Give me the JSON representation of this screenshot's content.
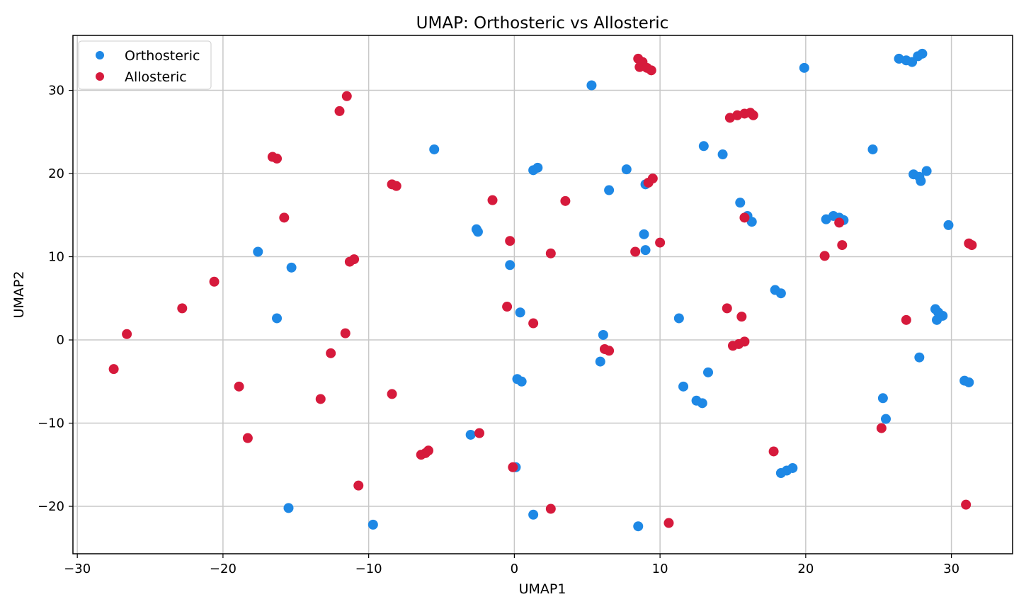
{
  "chart_data": {
    "type": "scatter",
    "title": "UMAP: Orthosteric vs Allosteric",
    "xlabel": "UMAP1",
    "ylabel": "UMAP2",
    "xlim": [
      -30.3,
      34.2
    ],
    "ylim": [
      -25.7,
      36.6
    ],
    "xticks": [
      -30,
      -20,
      -10,
      0,
      10,
      20,
      30
    ],
    "yticks": [
      -20,
      -10,
      0,
      10,
      20,
      30
    ],
    "xtick_labels": [
      "−30",
      "−20",
      "−10",
      "0",
      "10",
      "20",
      "30"
    ],
    "ytick_labels": [
      "−20",
      "−10",
      "0",
      "10",
      "20",
      "30"
    ],
    "grid": true,
    "legend_position": "top-left",
    "series": [
      {
        "name": "Orthosteric",
        "color": "#1e88e5",
        "points": [
          [
            5.3,
            30.6
          ],
          [
            19.9,
            32.7
          ],
          [
            26.4,
            33.8
          ],
          [
            26.9,
            33.6
          ],
          [
            27.3,
            33.4
          ],
          [
            27.7,
            34.1
          ],
          [
            28.0,
            34.4
          ],
          [
            -5.5,
            22.9
          ],
          [
            13.0,
            23.3
          ],
          [
            14.3,
            22.3
          ],
          [
            24.6,
            22.9
          ],
          [
            1.3,
            20.4
          ],
          [
            1.6,
            20.7
          ],
          [
            7.7,
            20.5
          ],
          [
            9.0,
            18.7
          ],
          [
            6.5,
            18.0
          ],
          [
            27.4,
            19.9
          ],
          [
            27.8,
            19.6
          ],
          [
            27.9,
            19.1
          ],
          [
            28.3,
            20.3
          ],
          [
            15.5,
            16.5
          ],
          [
            16.0,
            14.9
          ],
          [
            16.3,
            14.2
          ],
          [
            21.4,
            14.5
          ],
          [
            21.9,
            14.9
          ],
          [
            22.3,
            14.7
          ],
          [
            22.6,
            14.4
          ],
          [
            29.8,
            13.8
          ],
          [
            -2.6,
            13.3
          ],
          [
            -2.5,
            13.0
          ],
          [
            8.9,
            12.7
          ],
          [
            9.0,
            10.8
          ],
          [
            -17.6,
            10.6
          ],
          [
            -15.3,
            8.7
          ],
          [
            -0.3,
            9.0
          ],
          [
            17.9,
            6.0
          ],
          [
            18.3,
            5.6
          ],
          [
            -16.3,
            2.6
          ],
          [
            0.4,
            3.3
          ],
          [
            11.3,
            2.6
          ],
          [
            28.9,
            3.7
          ],
          [
            29.1,
            3.3
          ],
          [
            29.4,
            2.9
          ],
          [
            29.0,
            2.4
          ],
          [
            6.1,
            0.6
          ],
          [
            5.9,
            -2.6
          ],
          [
            27.8,
            -2.1
          ],
          [
            0.2,
            -4.7
          ],
          [
            0.5,
            -5.0
          ],
          [
            13.3,
            -3.9
          ],
          [
            11.6,
            -5.6
          ],
          [
            30.9,
            -4.9
          ],
          [
            31.2,
            -5.1
          ],
          [
            12.5,
            -7.3
          ],
          [
            12.9,
            -7.6
          ],
          [
            25.3,
            -7.0
          ],
          [
            25.5,
            -9.5
          ],
          [
            -3.0,
            -11.4
          ],
          [
            0.1,
            -15.3
          ],
          [
            18.3,
            -16.0
          ],
          [
            18.7,
            -15.7
          ],
          [
            19.1,
            -15.4
          ],
          [
            -15.5,
            -20.2
          ],
          [
            -9.7,
            -22.2
          ],
          [
            1.3,
            -21.0
          ],
          [
            8.5,
            -22.4
          ]
        ]
      },
      {
        "name": "Allosteric",
        "color": "#d61a3c",
        "points": [
          [
            8.5,
            33.8
          ],
          [
            8.8,
            33.4
          ],
          [
            8.6,
            32.8
          ],
          [
            9.1,
            32.7
          ],
          [
            9.4,
            32.4
          ],
          [
            -11.5,
            29.3
          ],
          [
            -12.0,
            27.5
          ],
          [
            -16.6,
            22.0
          ],
          [
            -16.3,
            21.8
          ],
          [
            14.8,
            26.7
          ],
          [
            15.3,
            27.0
          ],
          [
            15.8,
            27.2
          ],
          [
            16.2,
            27.3
          ],
          [
            16.4,
            27.0
          ],
          [
            -8.4,
            18.7
          ],
          [
            -8.1,
            18.5
          ],
          [
            9.2,
            18.9
          ],
          [
            9.5,
            19.4
          ],
          [
            -1.5,
            16.8
          ],
          [
            3.5,
            16.7
          ],
          [
            -15.8,
            14.7
          ],
          [
            15.8,
            14.7
          ],
          [
            22.3,
            14.1
          ],
          [
            -0.3,
            11.9
          ],
          [
            10.0,
            11.7
          ],
          [
            31.2,
            11.6
          ],
          [
            31.4,
            11.4
          ],
          [
            -11.3,
            9.4
          ],
          [
            -11.0,
            9.7
          ],
          [
            2.5,
            10.4
          ],
          [
            8.3,
            10.6
          ],
          [
            21.3,
            10.1
          ],
          [
            22.5,
            11.4
          ],
          [
            -20.6,
            7.0
          ],
          [
            -22.8,
            3.8
          ],
          [
            -0.5,
            4.0
          ],
          [
            14.6,
            3.8
          ],
          [
            15.6,
            2.8
          ],
          [
            1.3,
            2.0
          ],
          [
            26.9,
            2.4
          ],
          [
            -26.6,
            0.7
          ],
          [
            -11.6,
            0.8
          ],
          [
            -12.6,
            -1.6
          ],
          [
            15.0,
            -0.7
          ],
          [
            15.4,
            -0.5
          ],
          [
            15.8,
            -0.2
          ],
          [
            6.2,
            -1.1
          ],
          [
            6.5,
            -1.3
          ],
          [
            -27.5,
            -3.5
          ],
          [
            -18.9,
            -5.6
          ],
          [
            -8.4,
            -6.5
          ],
          [
            -13.3,
            -7.1
          ],
          [
            -18.3,
            -11.8
          ],
          [
            -2.4,
            -11.2
          ],
          [
            25.2,
            -10.6
          ],
          [
            -6.4,
            -13.8
          ],
          [
            -6.1,
            -13.6
          ],
          [
            -5.9,
            -13.3
          ],
          [
            17.8,
            -13.4
          ],
          [
            -10.7,
            -17.5
          ],
          [
            -0.1,
            -15.3
          ],
          [
            2.5,
            -20.3
          ],
          [
            10.6,
            -22.0
          ],
          [
            31.0,
            -19.8
          ]
        ]
      }
    ]
  }
}
